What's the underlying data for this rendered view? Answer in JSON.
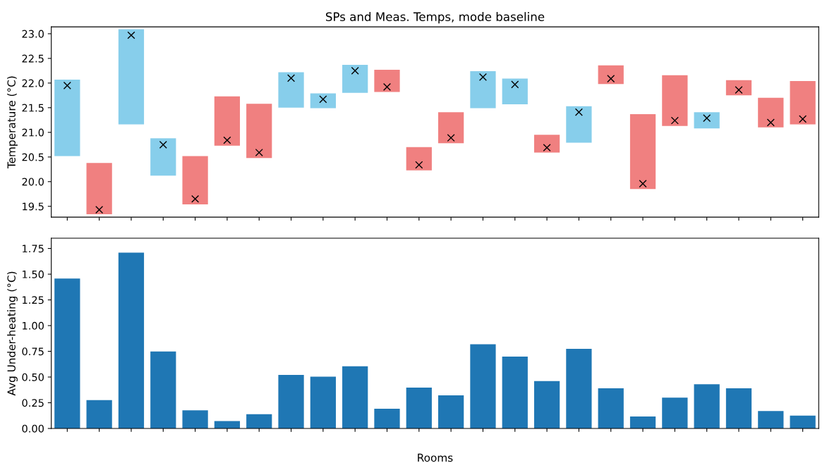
{
  "chart_data": [
    {
      "type": "bar",
      "title": "SPs and Meas. Temps, mode baseline",
      "ylabel": "Temperature (°C)",
      "categories": [
        null,
        null,
        null,
        null,
        null,
        null,
        null,
        null,
        null,
        null,
        null,
        null,
        null,
        null,
        null,
        null,
        null,
        null,
        null,
        null,
        null,
        null,
        null,
        null
      ],
      "series": [
        {
          "type": "bar",
          "base": [
            20.52,
            19.34,
            21.16,
            20.12,
            19.54,
            20.73,
            20.48,
            21.5,
            21.49,
            21.8,
            21.82,
            20.23,
            20.78,
            21.49,
            21.57,
            20.59,
            20.79,
            21.98,
            19.85,
            21.13,
            21.08,
            21.75,
            21.1,
            21.16
          ],
          "values": [
            1.55,
            1.04,
            1.93,
            0.76,
            0.98,
            1.0,
            1.1,
            0.72,
            0.3,
            0.57,
            0.45,
            0.47,
            0.63,
            0.75,
            0.52,
            0.36,
            0.74,
            0.38,
            1.52,
            1.03,
            0.33,
            0.31,
            0.6,
            0.88
          ],
          "colors": [
            "#87ceeb",
            "#f08080",
            "#87ceeb",
            "#87ceeb",
            "#f08080",
            "#f08080",
            "#f08080",
            "#87ceeb",
            "#87ceeb",
            "#87ceeb",
            "#f08080",
            "#f08080",
            "#f08080",
            "#87ceeb",
            "#87ceeb",
            "#f08080",
            "#87ceeb",
            "#f08080",
            "#f08080",
            "#f08080",
            "#87ceeb",
            "#f08080",
            "#f08080",
            "#f08080"
          ]
        },
        {
          "type": "scatter",
          "color": "#000000",
          "marker": "cross",
          "values": [
            21.95,
            19.43,
            22.97,
            20.75,
            19.65,
            20.84,
            20.59,
            22.1,
            21.67,
            22.25,
            21.92,
            20.34,
            20.89,
            22.12,
            21.97,
            20.69,
            21.41,
            22.09,
            19.96,
            21.24,
            21.29,
            21.86,
            21.2,
            21.27
          ]
        }
      ],
      "ylim": [
        19.28,
        23.14
      ],
      "yticks": [
        19.5,
        {
          "value": 20,
          "label": "20.0"
        },
        20.5,
        {
          "value": 21,
          "label": "21.0"
        },
        21.5,
        {
          "value": 22,
          "label": "22.0"
        },
        22.5,
        {
          "value": 23,
          "label": "23.0"
        }
      ],
      "tick_labels": "y",
      "grid": false
    },
    {
      "type": "bar",
      "xlabel": "Rooms",
      "ylabel": "Avg Under-heating (°C)",
      "categories": [
        null,
        null,
        null,
        null,
        null,
        null,
        null,
        null,
        null,
        null,
        null,
        null,
        null,
        null,
        null,
        null,
        null,
        null,
        null,
        null,
        null,
        null,
        null,
        null
      ],
      "series": [
        {
          "color": "#1f77b4",
          "values": [
            1.457,
            0.275,
            1.709,
            0.749,
            0.176,
            0.071,
            0.138,
            0.52,
            0.504,
            0.604,
            0.191,
            0.397,
            0.322,
            0.818,
            0.699,
            0.46,
            0.774,
            0.39,
            0.117,
            0.299,
            0.429,
            0.39,
            0.169,
            0.125
          ]
        }
      ],
      "ylim": [
        0,
        1.85
      ],
      "yticks": [
        {
          "value": 0,
          "label": "0.00"
        },
        {
          "value": 0.25,
          "label": "0.25"
        },
        {
          "value": 0.5,
          "label": "0.50"
        },
        {
          "value": 0.75,
          "label": "0.75"
        },
        {
          "value": 1.0,
          "label": "1.00"
        },
        {
          "value": 1.25,
          "label": "1.25"
        },
        {
          "value": 1.5,
          "label": "1.50"
        },
        {
          "value": 1.75,
          "label": "1.75"
        }
      ],
      "tick_labels": "y",
      "grid": false
    }
  ]
}
